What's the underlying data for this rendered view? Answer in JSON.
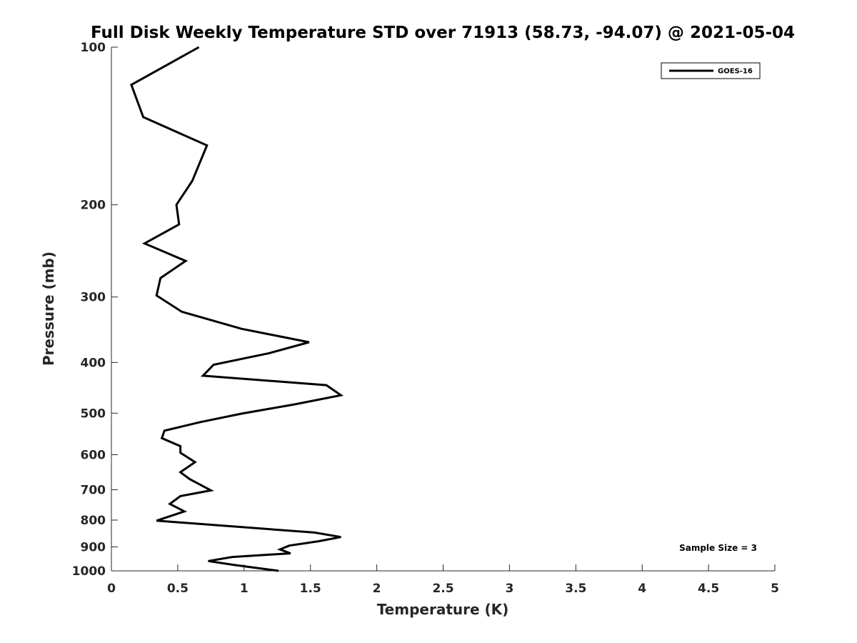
{
  "chart_data": {
    "type": "line",
    "title": "Full Disk Weekly Temperature STD over 71913 (58.73, -94.07) @ 2021-05-04",
    "xlabel": "Temperature (K)",
    "ylabel": "Pressure (mb)",
    "xlim": [
      0,
      5
    ],
    "ylim": [
      100,
      1000
    ],
    "y_scale": "log",
    "y_reversed": true,
    "grid": false,
    "legend_position": "top-right",
    "x_ticks": [
      "0",
      "0.5",
      "1",
      "1.5",
      "2",
      "2.5",
      "3",
      "3.5",
      "4",
      "4.5",
      "5"
    ],
    "y_ticks": [
      "100",
      "200",
      "300",
      "400",
      "500",
      "600",
      "700",
      "800",
      "900",
      "1000"
    ],
    "series": [
      {
        "name": "GOES-16",
        "color": "#000000",
        "points": [
          [
            0.66,
            100
          ],
          [
            0.15,
            118
          ],
          [
            0.24,
            136
          ],
          [
            0.72,
            154
          ],
          [
            0.61,
            180
          ],
          [
            0.49,
            200
          ],
          [
            0.51,
            218
          ],
          [
            0.25,
            237
          ],
          [
            0.56,
            256
          ],
          [
            0.37,
            276
          ],
          [
            0.34,
            298
          ],
          [
            0.53,
            320
          ],
          [
            0.98,
            345
          ],
          [
            1.49,
            366
          ],
          [
            1.19,
            384
          ],
          [
            0.77,
            404
          ],
          [
            0.69,
            424
          ],
          [
            1.62,
            442
          ],
          [
            1.73,
            462
          ],
          [
            1.38,
            481
          ],
          [
            0.98,
            501
          ],
          [
            0.67,
            520
          ],
          [
            0.4,
            540
          ],
          [
            0.38,
            558
          ],
          [
            0.52,
            578
          ],
          [
            0.52,
            595
          ],
          [
            0.63,
            620
          ],
          [
            0.52,
            648
          ],
          [
            0.59,
            668
          ],
          [
            0.75,
            702
          ],
          [
            0.52,
            720
          ],
          [
            0.44,
            745
          ],
          [
            0.55,
            770
          ],
          [
            0.34,
            802
          ],
          [
            1.53,
            845
          ],
          [
            1.73,
            862
          ],
          [
            1.56,
            878
          ],
          [
            1.34,
            895
          ],
          [
            1.27,
            910
          ],
          [
            1.35,
            926
          ],
          [
            0.91,
            941
          ],
          [
            0.73,
            958
          ],
          [
            0.93,
            975
          ],
          [
            1.26,
            1000
          ]
        ]
      }
    ],
    "annotation": "Sample Size = 3"
  }
}
